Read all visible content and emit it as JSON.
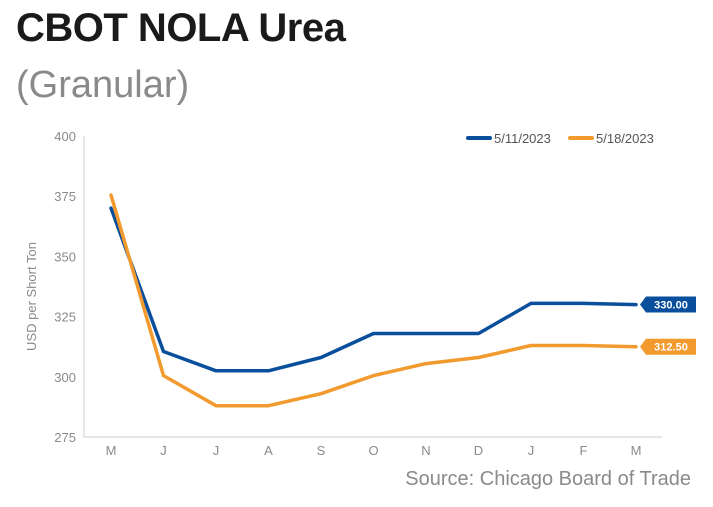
{
  "header": {
    "title": "CBOT NOLA Urea",
    "subtitle": "(Granular)"
  },
  "source": "Source: Chicago Board of Trade",
  "colors": {
    "series1": "#0a4f9c",
    "series2": "#f29a2e",
    "axis": "#cfcfcf",
    "text_muted": "#8a8a8a"
  },
  "chart_data": {
    "type": "line",
    "title": "CBOT NOLA Urea",
    "subtitle": "(Granular)",
    "xlabel": "",
    "ylabel": "USD per Short Ton",
    "categories": [
      "M",
      "J",
      "J",
      "A",
      "S",
      "O",
      "N",
      "D",
      "J",
      "F",
      "M"
    ],
    "ylim": [
      275,
      400
    ],
    "yticks": [
      275,
      300,
      325,
      350,
      375,
      400
    ],
    "grid": false,
    "legend": "top-right",
    "series": [
      {
        "name": "5/11/2023",
        "color": "#0a4f9c",
        "values": [
          370,
          310.5,
          302.5,
          302.5,
          308,
          318,
          318,
          318,
          330.5,
          330.5,
          330
        ],
        "end_label": "330.00"
      },
      {
        "name": "5/18/2023",
        "color": "#f29a2e",
        "values": [
          375.5,
          300.5,
          288,
          288,
          293,
          300.5,
          305.5,
          308,
          313,
          313,
          312.5
        ],
        "end_label": "312.50"
      }
    ]
  }
}
